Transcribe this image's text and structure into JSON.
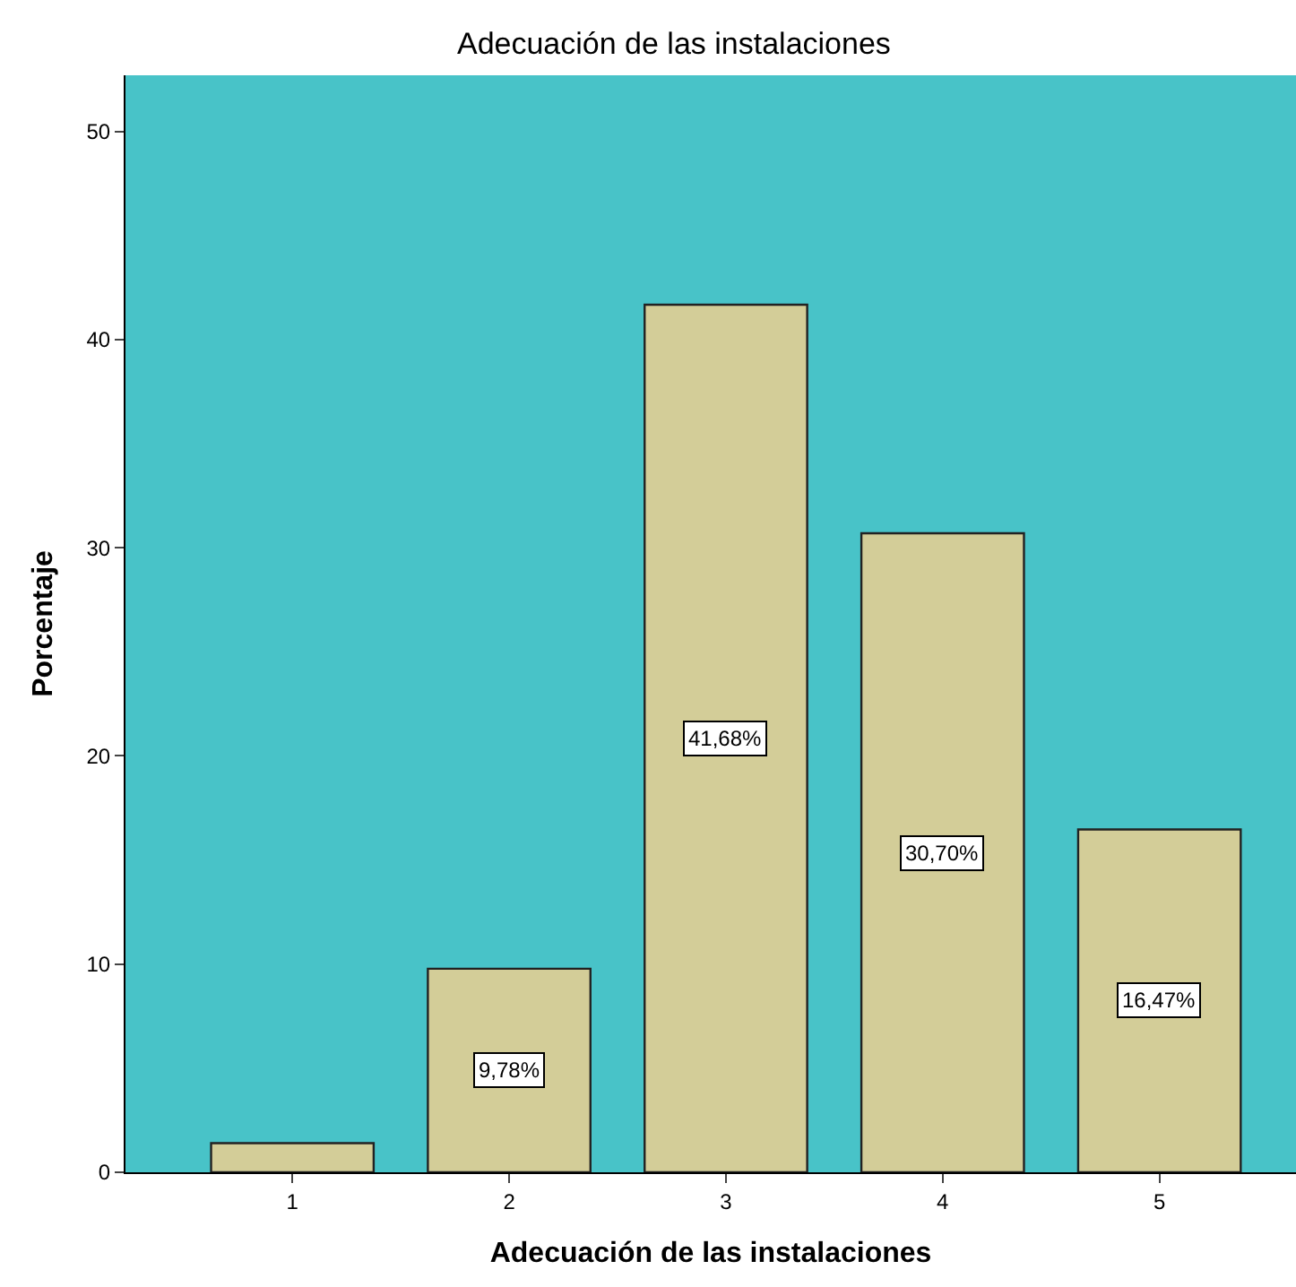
{
  "chart_data": {
    "type": "bar",
    "title": "Adecuación de las instalaciones",
    "xlabel": "Adecuación de las instalaciones",
    "ylabel": "Porcentaje",
    "categories": [
      "1",
      "2",
      "3",
      "4",
      "5"
    ],
    "values": [
      1.4,
      9.78,
      41.68,
      30.7,
      16.47
    ],
    "value_labels": [
      null,
      "9,78%",
      "41,68%",
      "30,70%",
      "16,47%"
    ],
    "color": "#d3cd98",
    "ylim": [
      0,
      52.7
    ],
    "yticks": [
      0,
      10,
      20,
      30,
      40,
      50
    ],
    "grid": false
  }
}
